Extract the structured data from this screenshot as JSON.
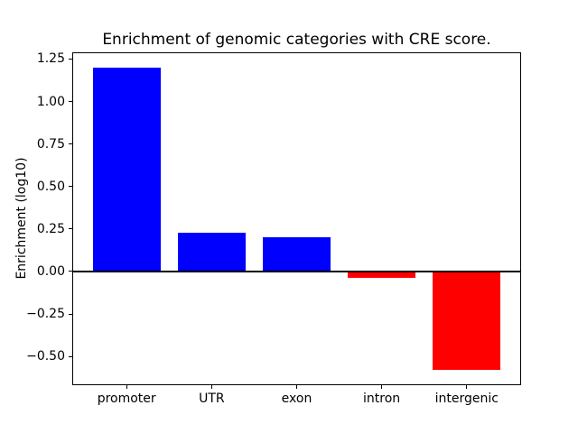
{
  "figure": {
    "background": "#ffffff"
  },
  "chart_data": {
    "type": "bar",
    "title": "Enrichment of genomic categories with CRE score.",
    "ylabel": "Enrichment (log10)",
    "xlabel": "",
    "categories": [
      "promoter",
      "UTR",
      "exon",
      "intron",
      "intergenic"
    ],
    "values": [
      1.2,
      0.23,
      0.2,
      -0.04,
      -0.58
    ],
    "bar_colors": [
      "#0000ff",
      "#0000ff",
      "#0000ff",
      "#ff0000",
      "#ff0000"
    ],
    "positive_color": "#0000ff",
    "negative_color": "#ff0000",
    "bar_width": 0.8,
    "ylim": [
      -0.669,
      1.289
    ],
    "xlim": [
      -0.64,
      4.64
    ],
    "yticks": [
      1.25,
      1.0,
      0.75,
      0.5,
      0.25,
      0.0,
      -0.25,
      -0.5
    ],
    "ytick_labels": [
      "1.25",
      "1.00",
      "0.75",
      "0.50",
      "0.25",
      "0.00",
      "−0.25",
      "−0.50"
    ],
    "zero_line": true,
    "grid": false,
    "legend": null,
    "axis_color": "#000000",
    "text_color": "#000000"
  }
}
